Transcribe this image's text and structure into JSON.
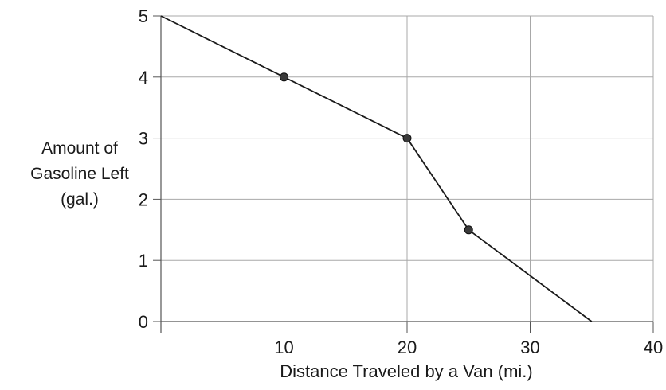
{
  "chart_data": {
    "type": "line",
    "title": "",
    "xlabel": "Distance Traveled by a Van (mi.)",
    "ylabel_lines": [
      "Amount of",
      "Gasoline Left",
      "(gal.)"
    ],
    "xlim": [
      0,
      40
    ],
    "ylim": [
      0,
      5
    ],
    "x_ticks": [
      10,
      20,
      30,
      40
    ],
    "y_ticks": [
      0,
      1,
      2,
      3,
      4,
      5
    ],
    "grid": true,
    "series": [
      {
        "x": [
          0,
          10,
          20,
          25,
          35
        ],
        "y": [
          5,
          4,
          3,
          1.5,
          0
        ],
        "marked_points": [
          [
            10,
            4
          ],
          [
            20,
            3
          ],
          [
            25,
            1.5
          ]
        ]
      }
    ],
    "colors": {
      "line": "#1a1a1a",
      "marker": "#3a3a3a",
      "grid": "#a8a8a8",
      "axis": "#555555"
    }
  }
}
